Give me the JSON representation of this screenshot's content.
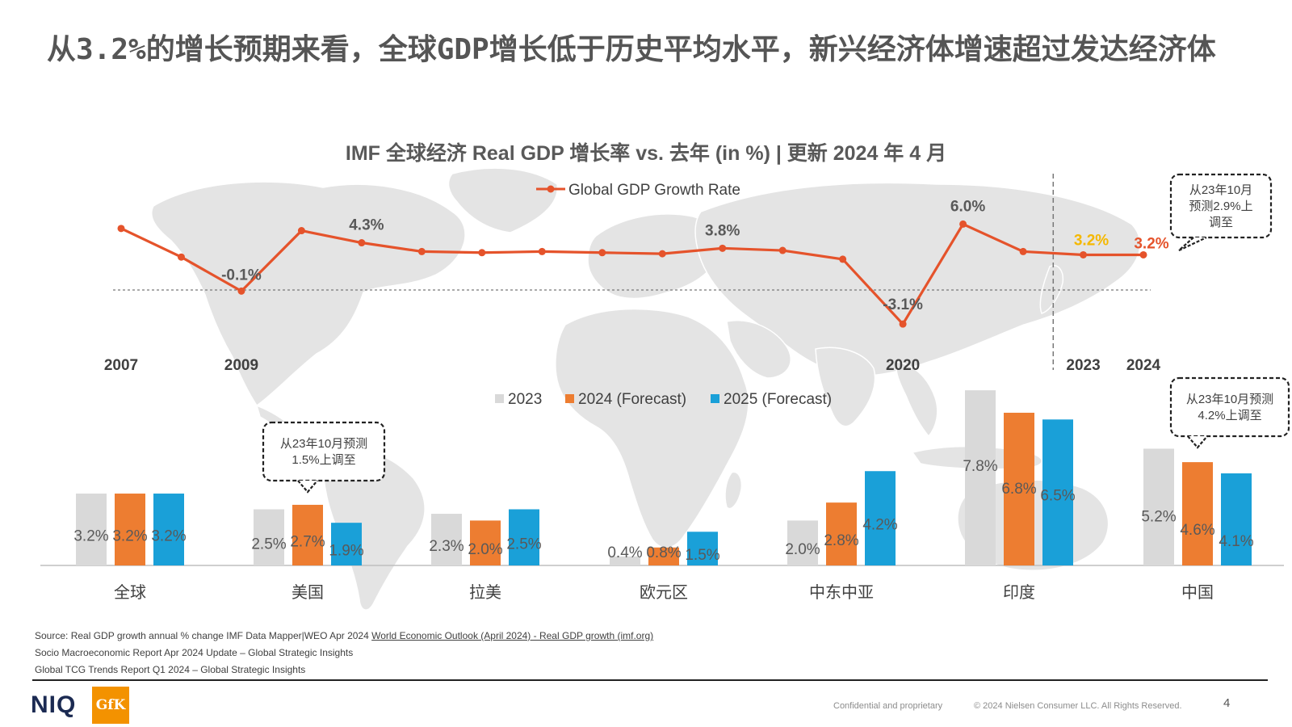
{
  "slide": {
    "title": "从3.2%的增长预期来看，全球GDP增长低于历史平均水平，新兴经济体增速超过发达经济体",
    "chart_title": "IMF 全球经济 Real GDP 增长率 vs. 去年 (in %) | 更新 2024 年 4 月"
  },
  "chart_data": [
    {
      "type": "line",
      "legend": [
        "Global GDP Growth Rate"
      ],
      "series": [
        {
          "name": "Global GDP Growth Rate",
          "color": "#e5532b",
          "values": [
            5.6,
            3.0,
            -0.1,
            5.4,
            4.3,
            3.5,
            3.4,
            3.5,
            3.4,
            3.3,
            3.8,
            3.6,
            2.8,
            -3.1,
            6.0,
            3.5,
            3.2,
            3.2
          ]
        }
      ],
      "x": [
        2007,
        2008,
        2009,
        2010,
        2011,
        2012,
        2013,
        2014,
        2015,
        2016,
        2017,
        2018,
        2019,
        2020,
        2021,
        2022,
        2023,
        2024
      ],
      "tick_labels": [
        {
          "year": 2007,
          "text": "2007"
        },
        {
          "year": 2009,
          "text": "2009"
        },
        {
          "year": 2020,
          "text": "2020"
        },
        {
          "year": 2023,
          "text": "2023"
        },
        {
          "year": 2024,
          "text": "2024"
        }
      ],
      "data_labels": [
        {
          "year": 2009,
          "text": "-0.1%",
          "color": "#595959"
        },
        {
          "year": 2011,
          "text": "4.3%",
          "color": "#595959"
        },
        {
          "year": 2017,
          "text": "3.8%",
          "color": "#595959"
        },
        {
          "year": 2020,
          "text": "-3.1%",
          "color": "#595959"
        },
        {
          "year": 2021,
          "text": "6.0%",
          "color": "#595959"
        },
        {
          "year": 2023,
          "text": "3.2%",
          "color": "#f5b800"
        },
        {
          "year": 2024,
          "text": "3.2%",
          "color": "#e5532b"
        }
      ],
      "reference_line": {
        "value": 0
      },
      "callout": {
        "text_lines": [
          "从23年10月",
          "预测2.9%上",
          "调至"
        ]
      }
    },
    {
      "type": "bar",
      "legend_position": "top",
      "categories": [
        "全球",
        "美国",
        "拉美",
        "欧元区",
        "中东中亚",
        "印度",
        "中国"
      ],
      "series": [
        {
          "name": "2023",
          "color": "#d9d9d9",
          "values": [
            3.2,
            2.5,
            2.3,
            0.4,
            2.0,
            7.8,
            5.2
          ]
        },
        {
          "name": "2024 (Forecast)",
          "color": "#ed7d31",
          "values": [
            3.2,
            2.7,
            2.0,
            0.8,
            2.8,
            6.8,
            4.6
          ]
        },
        {
          "name": "2025 (Forecast)",
          "color": "#1aa0d8",
          "values": [
            3.2,
            1.9,
            2.5,
            1.5,
            4.2,
            6.5,
            4.1
          ]
        }
      ],
      "value_labels": [
        [
          "3.2%",
          "2.5%",
          "2.3%",
          "0.4%",
          "2.0%",
          "7.8%",
          "5.2%"
        ],
        [
          "3.2%",
          "2.7%",
          "2.0%",
          "0.8%",
          "2.8%",
          "6.8%",
          "4.6%"
        ],
        [
          "3.2%",
          "1.9%",
          "2.5%",
          "1.5%",
          "4.2%",
          "6.5%",
          "4.1%"
        ]
      ],
      "callouts": [
        {
          "category": "美国",
          "text_lines": [
            "从23年10月预测",
            "1.5%上调至"
          ]
        },
        {
          "category": "中国",
          "text_lines": [
            "从23年10月预测",
            "4.2%上调至"
          ]
        }
      ]
    }
  ],
  "sources": {
    "line1_prefix": "Source: Real GDP growth annual % change IMF Data Mapper|WEO Apr 2024 ",
    "line1_link": "World Economic Outlook (April 2024) - Real GDP growth (imf.org)",
    "line2": "Socio Macroeconomic Report Apr 2024 Update – Global Strategic Insights",
    "line3": "Global TCG Trends Report Q1 2024 – Global Strategic Insights"
  },
  "footer": {
    "logo_left": "NIQ",
    "logo_right": "GfK",
    "confidential": "Confidential and proprietary",
    "copyright": "© 2024 Nielsen Consumer LLC. All Rights Reserved.",
    "page_number": "4"
  }
}
